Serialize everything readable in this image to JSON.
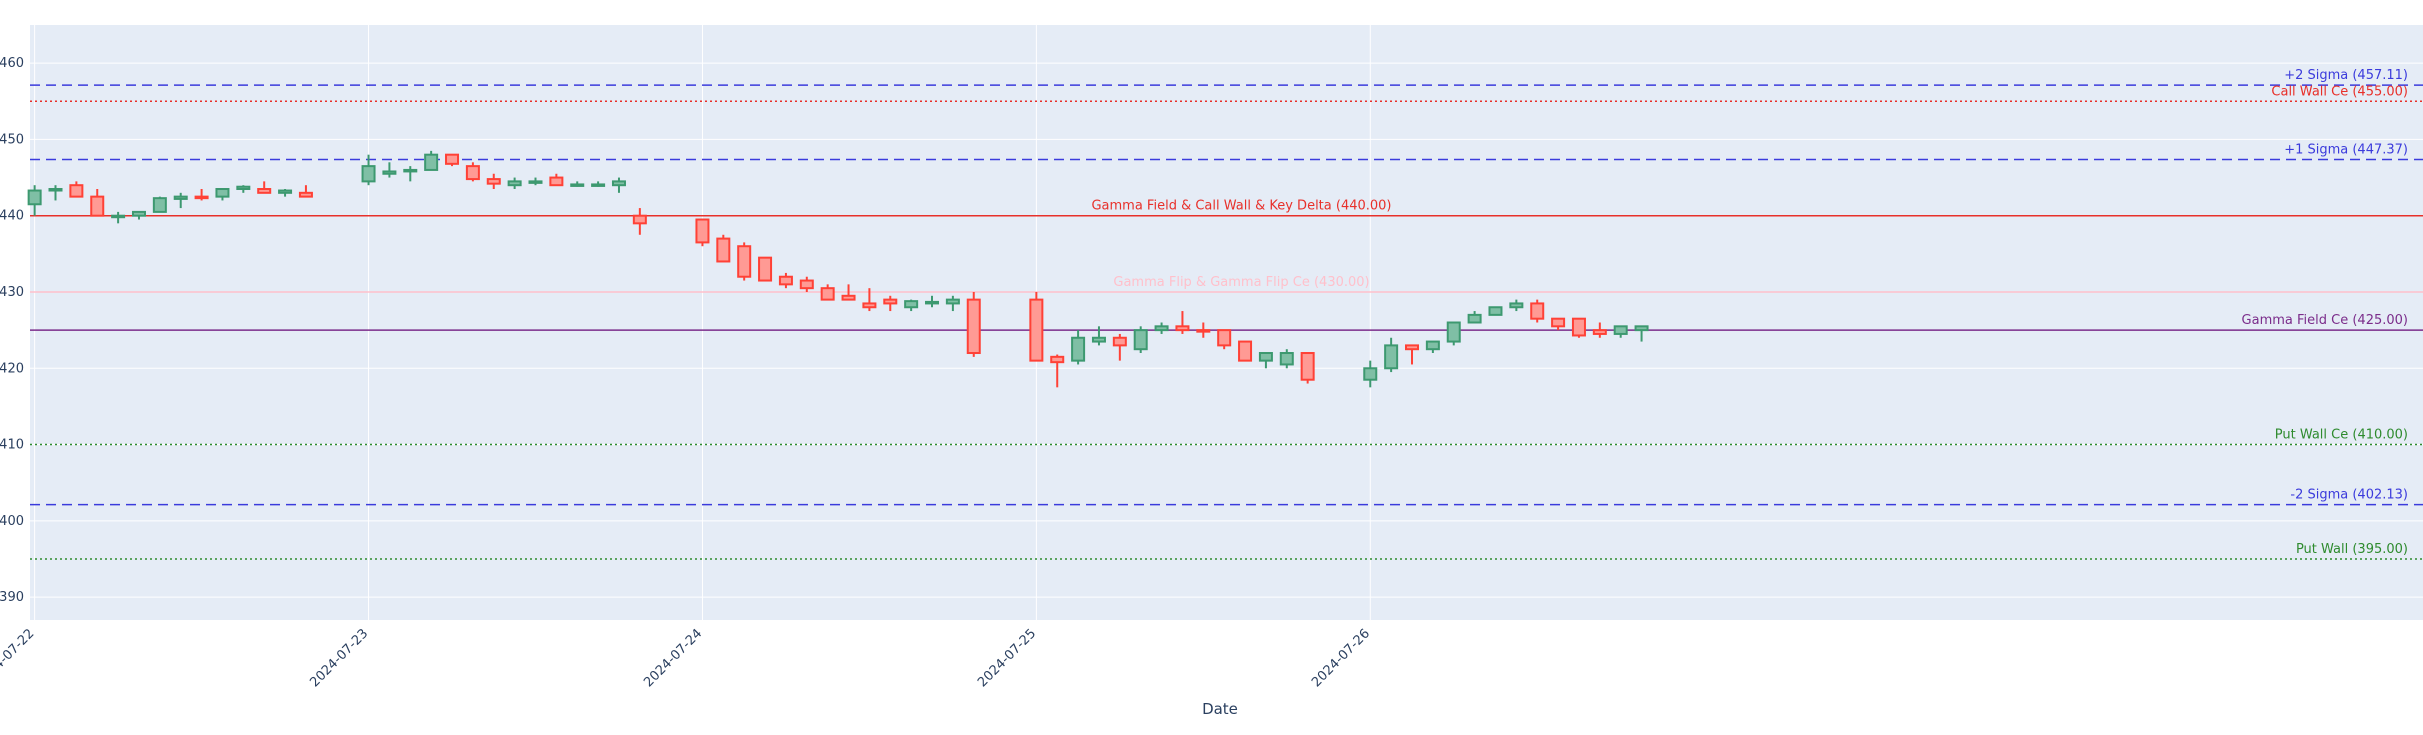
{
  "chart_data": {
    "type": "candlestick",
    "xlabel": "Date",
    "ylabel": "",
    "ylim": [
      387,
      465
    ],
    "xlim": [
      "2024-07-21T23:40",
      "2024-07-29T03:40"
    ],
    "y_ticks": [
      390,
      400,
      410,
      420,
      430,
      440,
      450,
      460
    ],
    "x_ticks": [
      "2024-07-22",
      "2024-07-23",
      "2024-07-24",
      "2024-07-25",
      "2024-07-26"
    ],
    "grid": true,
    "colors": {
      "plot_bg": "#e5ecf6",
      "grid": "#ffffff",
      "increasing_line": "#3d9970",
      "increasing_fill": "#7fbfa5",
      "decreasing_line": "#ff4136",
      "decreasing_fill": "#ff9a94"
    },
    "levels": [
      {
        "label": "+2 Sigma (457.11)",
        "value": 457.11,
        "color": "#3b3bdc",
        "dash": "dash",
        "label_pos": "right"
      },
      {
        "label": "Call Wall Ce (455.00)",
        "value": 455.0,
        "color": "#e8302a",
        "dash": "dot",
        "label_pos": "right"
      },
      {
        "label": "+1 Sigma (447.37)",
        "value": 447.37,
        "color": "#3b3bdc",
        "dash": "dash",
        "label_pos": "right"
      },
      {
        "label": "Gamma Field & Call Wall & Key Delta (440.00)",
        "value": 440.0,
        "color": "#e8302a",
        "dash": "solid",
        "label_pos": "center"
      },
      {
        "label": "Gamma Flip & Gamma Flip Ce (430.00)",
        "value": 430.0,
        "color": "#ffc0cb",
        "dash": "solid",
        "label_pos": "center"
      },
      {
        "label": "Gamma Field Ce (425.00)",
        "value": 425.0,
        "color": "#7b2d8b",
        "dash": "solid",
        "label_pos": "right"
      },
      {
        "label": "Put Wall Ce (410.00)",
        "value": 410.0,
        "color": "#2e8b2e",
        "dash": "dot",
        "label_pos": "right"
      },
      {
        "label": "-2 Sigma (402.13)",
        "value": 402.13,
        "color": "#3b3bdc",
        "dash": "dash",
        "label_pos": "right"
      },
      {
        "label": "Put Wall (395.00)",
        "value": 395.0,
        "color": "#2e8b2e",
        "dash": "dot",
        "label_pos": "right"
      }
    ],
    "series": [
      {
        "x": [
          "2024-07-22T00:00",
          "2024-07-22T01:30",
          "2024-07-22T03:00",
          "2024-07-22T04:30",
          "2024-07-22T06:00",
          "2024-07-22T07:30",
          "2024-07-22T09:00",
          "2024-07-22T10:30",
          "2024-07-22T12:00",
          "2024-07-22T13:30",
          "2024-07-22T15:00",
          "2024-07-22T16:30",
          "2024-07-22T18:00",
          "2024-07-22T19:30",
          "2024-07-23T00:00",
          "2024-07-23T01:30",
          "2024-07-23T03:00",
          "2024-07-23T04:30",
          "2024-07-23T06:00",
          "2024-07-23T07:30",
          "2024-07-23T09:00",
          "2024-07-23T10:30",
          "2024-07-23T12:00",
          "2024-07-23T13:30",
          "2024-07-23T15:00",
          "2024-07-23T16:30",
          "2024-07-23T18:00",
          "2024-07-23T19:30",
          "2024-07-24T00:00",
          "2024-07-24T01:30",
          "2024-07-24T03:00",
          "2024-07-24T04:30",
          "2024-07-24T06:00",
          "2024-07-24T07:30",
          "2024-07-24T09:00",
          "2024-07-24T10:30",
          "2024-07-24T12:00",
          "2024-07-24T13:30",
          "2024-07-24T15:00",
          "2024-07-24T16:30",
          "2024-07-24T18:00",
          "2024-07-24T19:30",
          "2024-07-25T00:00",
          "2024-07-25T01:30",
          "2024-07-25T03:00",
          "2024-07-25T04:30",
          "2024-07-25T06:00",
          "2024-07-25T07:30",
          "2024-07-25T09:00",
          "2024-07-25T10:30",
          "2024-07-25T12:00",
          "2024-07-25T13:30",
          "2024-07-25T15:00",
          "2024-07-25T16:30",
          "2024-07-25T18:00",
          "2024-07-25T19:30",
          "2024-07-26T00:00",
          "2024-07-26T01:30",
          "2024-07-26T03:00",
          "2024-07-26T04:30",
          "2024-07-26T06:00",
          "2024-07-26T07:30",
          "2024-07-26T09:00",
          "2024-07-26T10:30",
          "2024-07-26T12:00",
          "2024-07-26T13:30",
          "2024-07-26T15:00",
          "2024-07-26T16:30",
          "2024-07-26T18:00",
          "2024-07-26T19:30"
        ],
        "open": [
          441.5,
          443.3,
          444.0,
          442.5,
          440.0,
          440.0,
          440.5,
          442.2,
          442.5,
          442.5,
          443.5,
          443.5,
          443.0,
          443.0,
          444.5,
          445.5,
          446.0,
          446.0,
          448.0,
          446.5,
          444.8,
          444.0,
          444.5,
          445.0,
          444.0,
          444.0,
          444.0,
          440.0,
          439.5,
          437.0,
          436.0,
          434.5,
          432.0,
          431.5,
          430.5,
          429.5,
          428.5,
          429.0,
          428.0,
          428.5,
          428.5,
          429.0,
          429.0,
          421.5,
          421.0,
          423.5,
          424.0,
          422.5,
          425.0,
          425.5,
          425.0,
          425.0,
          423.5,
          421.0,
          420.5,
          422.0,
          418.5,
          420.0,
          423.0,
          422.5,
          423.5,
          426.0,
          427.0,
          428.0,
          428.5,
          426.5,
          426.5,
          425.0,
          424.5,
          425.0
        ],
        "high": [
          444.0,
          444.0,
          444.5,
          443.5,
          440.5,
          440.5,
          442.5,
          443.0,
          443.5,
          443.5,
          444.0,
          444.5,
          443.5,
          444.0,
          448.0,
          447.0,
          446.5,
          448.5,
          448.0,
          447.0,
          445.5,
          445.0,
          445.0,
          445.5,
          444.5,
          444.5,
          445.0,
          441.0,
          439.5,
          437.5,
          436.5,
          434.5,
          432.5,
          432.0,
          431.0,
          431.0,
          430.5,
          429.5,
          429.0,
          429.5,
          429.5,
          430.0,
          430.0,
          421.8,
          425.0,
          425.5,
          424.5,
          425.5,
          426.0,
          427.5,
          426.0,
          425.0,
          423.5,
          421.5,
          422.5,
          422.0,
          421.0,
          424.0,
          423.0,
          423.5,
          426.0,
          427.5,
          428.0,
          429.0,
          429.0,
          426.5,
          426.5,
          426.0,
          425.5,
          425.5
        ],
        "low": [
          440.0,
          442.0,
          442.5,
          440.0,
          439.0,
          439.5,
          440.5,
          441.0,
          442.0,
          442.0,
          443.0,
          443.0,
          442.5,
          442.5,
          444.0,
          445.0,
          444.5,
          446.0,
          446.5,
          444.5,
          443.5,
          443.5,
          444.0,
          444.0,
          443.8,
          443.8,
          443.0,
          437.5,
          436.0,
          434.0,
          431.5,
          431.5,
          430.5,
          430.0,
          429.0,
          429.0,
          427.5,
          427.5,
          427.5,
          428.0,
          427.5,
          421.5,
          421.5,
          417.5,
          420.5,
          423.0,
          421.0,
          422.0,
          424.5,
          424.5,
          424.0,
          422.5,
          421.0,
          420.0,
          420.0,
          418.0,
          417.5,
          419.5,
          420.5,
          422.0,
          423.0,
          426.0,
          427.0,
          427.5,
          426.0,
          425.0,
          424.0,
          424.0,
          424.0,
          423.5
        ],
        "close": [
          443.3,
          443.5,
          442.5,
          440.0,
          440.0,
          440.5,
          442.3,
          442.5,
          442.3,
          443.5,
          443.8,
          443.0,
          443.3,
          442.5,
          446.5,
          445.8,
          446.0,
          448.0,
          446.8,
          444.8,
          444.2,
          444.5,
          444.5,
          444.0,
          444.1,
          444.1,
          444.5,
          439.0,
          436.5,
          434.0,
          432.0,
          431.5,
          431.0,
          430.5,
          429.0,
          429.0,
          428.0,
          428.5,
          428.8,
          428.7,
          429.0,
          422.0,
          421.0,
          420.8,
          424.0,
          424.0,
          423.0,
          425.0,
          425.5,
          425.0,
          424.8,
          423.0,
          421.0,
          422.0,
          422.0,
          418.5,
          420.0,
          423.0,
          422.5,
          423.5,
          426.0,
          427.0,
          428.0,
          428.5,
          426.5,
          425.5,
          424.3,
          424.5,
          425.5,
          425.5
        ]
      }
    ]
  }
}
